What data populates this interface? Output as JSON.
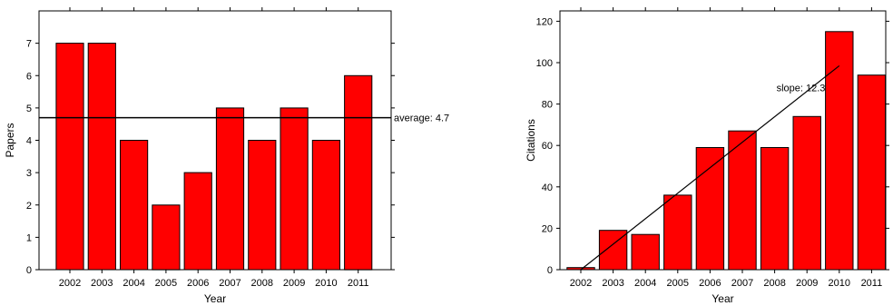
{
  "chart_data": [
    {
      "type": "bar",
      "categories": [
        "2002",
        "2003",
        "2004",
        "2005",
        "2006",
        "2007",
        "2008",
        "2009",
        "2010",
        "2011"
      ],
      "values": [
        7,
        7,
        4,
        2,
        3,
        5,
        4,
        5,
        4,
        6
      ],
      "xlabel": "Year",
      "ylabel": "Papers",
      "ylim": [
        0,
        8
      ],
      "yticks": [
        0,
        1,
        2,
        3,
        4,
        5,
        6,
        7
      ],
      "bar_color": "#ff0000",
      "grid": false,
      "reference_line": {
        "value": 4.7,
        "label": "average: 4.7"
      }
    },
    {
      "type": "bar",
      "categories": [
        "2002",
        "2003",
        "2004",
        "2005",
        "2006",
        "2007",
        "2008",
        "2009",
        "2010",
        "2011"
      ],
      "values": [
        1,
        19,
        17,
        36,
        59,
        67,
        59,
        74,
        115,
        94
      ],
      "xlabel": "Year",
      "ylabel": "Citations",
      "ylim": [
        0,
        125
      ],
      "yticks": [
        0,
        20,
        40,
        60,
        80,
        100,
        120
      ],
      "bar_color": "#ff0000",
      "grid": false,
      "trend_line": {
        "from": {
          "x": "2002",
          "y": 0
        },
        "to": {
          "x": "2010",
          "y": 98.5
        },
        "label": "slope: 12.3"
      }
    }
  ]
}
